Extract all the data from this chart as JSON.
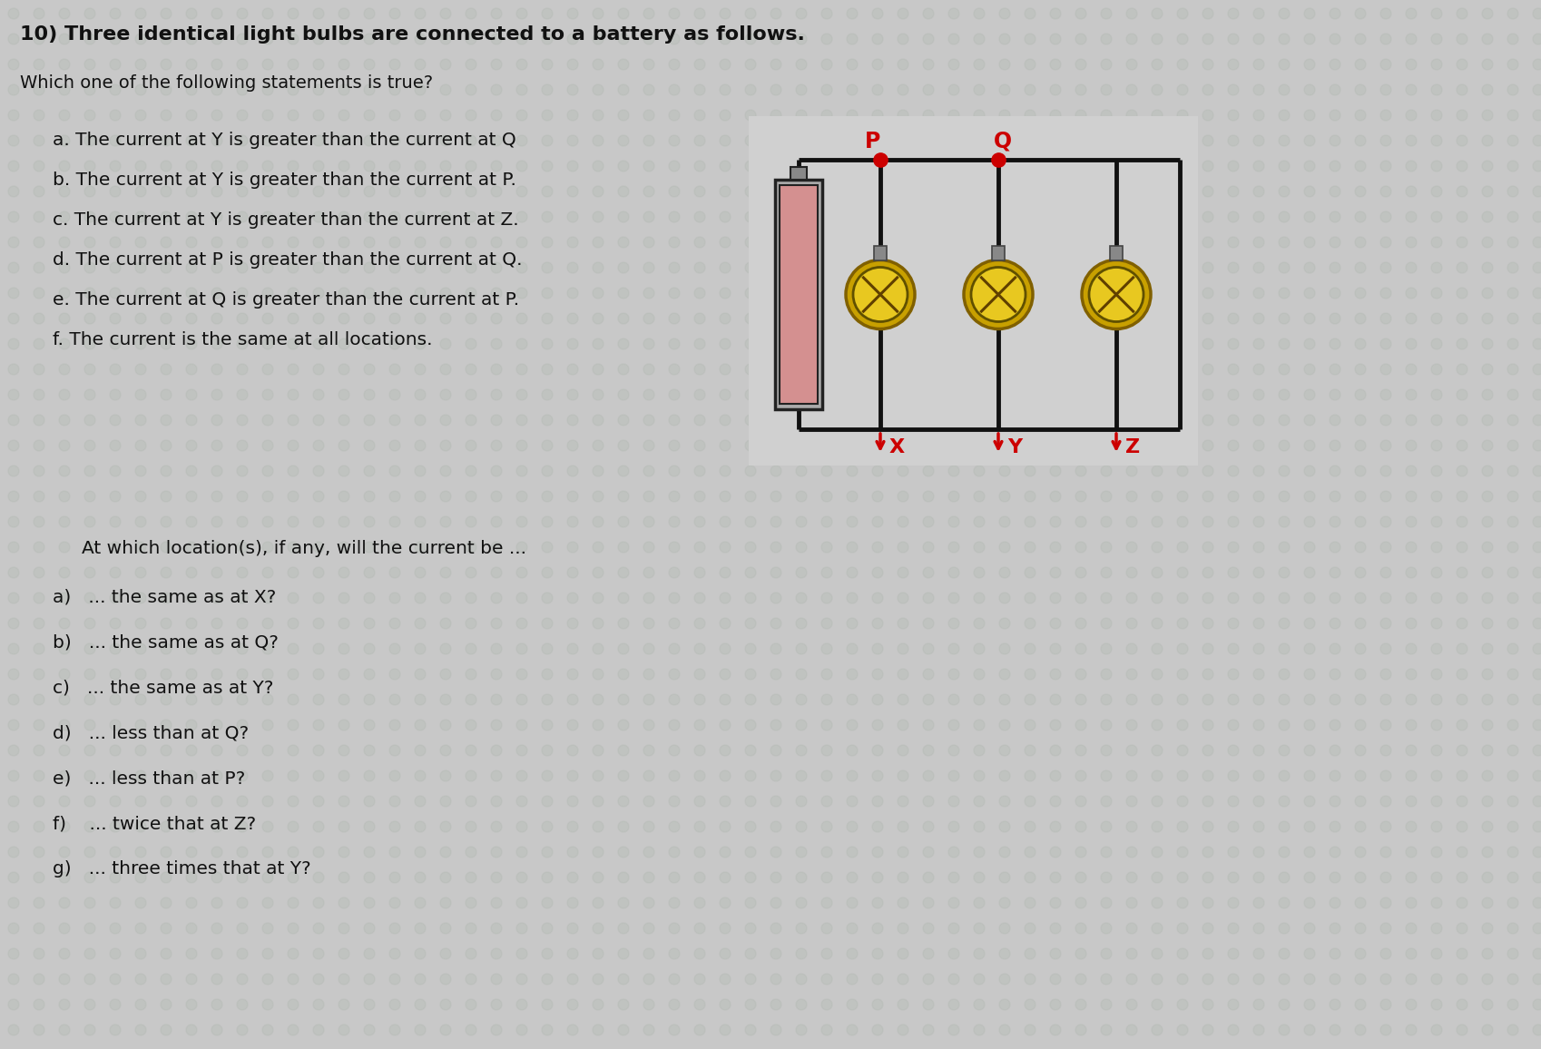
{
  "title_line": "10) Three identical light bulbs are connected to a battery as follows.",
  "subtitle": "Which one of the following statements is true?",
  "choices": [
    "a. The current at Y is greater than the current at Q",
    "b. The current at Y is greater than the current at P.",
    "c. The current at Y is greater than the current at Z.",
    "d. The current at P is greater than the current at Q.",
    "e. The current at Q is greater than the current at P.",
    "f. The current is the same at all locations."
  ],
  "section2_title": "At which location(s), if any, will the current be ...",
  "questions": [
    "a)   ... the same as at X?",
    "b)   ... the same as at Q?",
    "c)   ... the same as at Y?",
    "d)   ... less than at Q?",
    "e)   ... less than at P?",
    "f)    ... twice that at Z?",
    "g)   ... three times that at Y?"
  ],
  "bg_color": "#c8c8c8",
  "text_color": "#111111",
  "diagram_bg": "#d8d8d8",
  "battery_fill": "#d49090",
  "battery_border": "#222222",
  "wire_color": "#111111",
  "label_color": "#cc0000",
  "dot_color": "#cc0000",
  "bulb_outer": "#c8a000",
  "bulb_inner": "#d4b400",
  "bulb_center": "#e8c820",
  "bulb_cross": "#604000"
}
